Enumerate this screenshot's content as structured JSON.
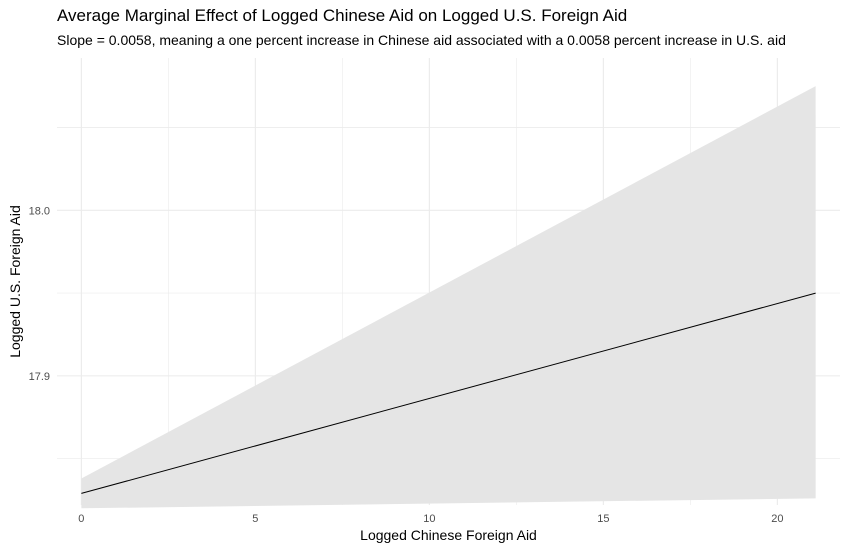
{
  "chart_data": {
    "type": "line",
    "title": "Average Marginal Effect of Logged Chinese Aid on Logged U.S. Foreign Aid",
    "subtitle": "Slope = 0.0058, meaning a one percent increase in Chinese aid associated with a 0.0058 percent increase in U.S. aid",
    "xlabel": "Logged Chinese Foreign Aid",
    "ylabel": "Logged U.S. Foreign Aid",
    "xlim": [
      -0.7,
      21.8
    ],
    "ylim": [
      17.822,
      18.092
    ],
    "x_ticks": [
      0,
      5,
      10,
      15,
      20
    ],
    "x_tick_labels": [
      "0",
      "5",
      "10",
      "15",
      "20"
    ],
    "y_ticks": [
      17.9,
      18.0
    ],
    "y_tick_labels": [
      "17.9",
      "18.0"
    ],
    "grid": true,
    "colors": {
      "line": "#000000",
      "ribbon": "#e5e5e5",
      "grid": "#ebebeb"
    },
    "series": [
      {
        "x": [
          0,
          21.1
        ],
        "y": [
          17.829,
          17.95
        ],
        "lower": [
          17.82,
          17.826
        ],
        "upper": [
          17.838,
          18.075
        ]
      }
    ]
  }
}
